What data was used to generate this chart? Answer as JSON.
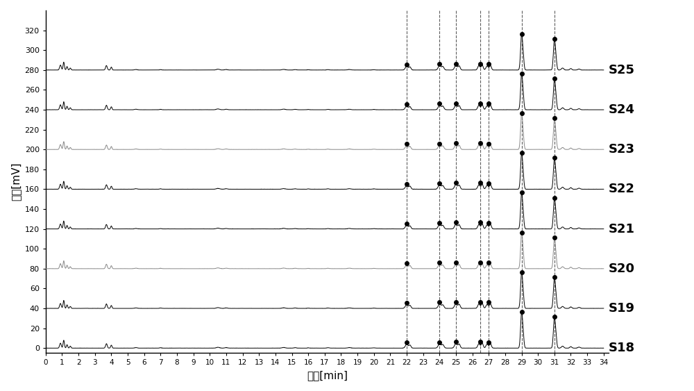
{
  "series_labels": [
    "S18",
    "S19",
    "S20",
    "S21",
    "S22",
    "S23",
    "S24",
    "S25"
  ],
  "offsets": [
    0,
    40,
    80,
    120,
    160,
    200,
    240,
    280
  ],
  "x_range": [
    0,
    34
  ],
  "y_range": [
    -5,
    340
  ],
  "y_ticks": [
    0,
    20,
    40,
    60,
    80,
    100,
    120,
    140,
    160,
    180,
    200,
    220,
    240,
    260,
    280,
    300,
    320
  ],
  "x_ticks": [
    0,
    1,
    2,
    3,
    4,
    5,
    6,
    7,
    8,
    9,
    10,
    11,
    12,
    13,
    14,
    15,
    16,
    17,
    18,
    19,
    20,
    21,
    22,
    23,
    24,
    25,
    26,
    27,
    28,
    29,
    30,
    31,
    32,
    33,
    34
  ],
  "xlabel": "时间[min]",
  "ylabel": "信号[mV]",
  "dashed_lines": [
    22.0,
    24.0,
    25.0,
    26.5,
    27.0,
    29.0,
    31.0
  ],
  "black_series": [
    0,
    1,
    3,
    4,
    6,
    7
  ],
  "gray_series": [
    2,
    5
  ],
  "figure_bg": "#ffffff",
  "axes_bg": "#ffffff",
  "line_color_black": "#000000",
  "line_color_gray": "#888888",
  "peak_marker_color": "#000000",
  "dashed_line_color": "#333333",
  "marker_size": 4,
  "peak_marker_style": "o"
}
